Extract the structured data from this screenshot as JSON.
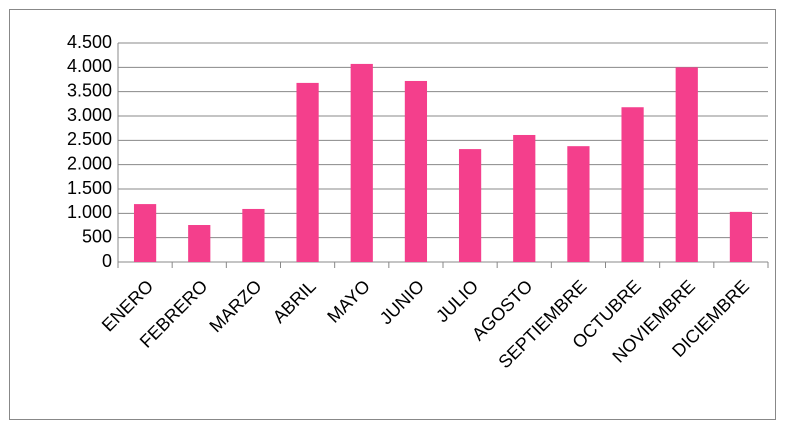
{
  "chart_data": {
    "type": "bar",
    "categories": [
      "ENERO",
      "FEBRERO",
      "MARZO",
      "ABRIL",
      "MAYO",
      "JUNIO",
      "JULIO",
      "AGOSTO",
      "SEPTIEMBRE",
      "OCTUBRE",
      "NOVIEMBRE",
      "DICIEMBRE"
    ],
    "values": [
      1190,
      760,
      1090,
      3680,
      4070,
      3720,
      2320,
      2610,
      2380,
      3180,
      4000,
      1030
    ],
    "color": "#f43f8c",
    "ylim": [
      0,
      4500
    ],
    "yticks": [
      0,
      500,
      {
        "value": 1000,
        "label": "1.000"
      },
      {
        "value": 1500,
        "label": "1.500"
      },
      {
        "value": 2000,
        "label": "2.000"
      },
      {
        "value": 2500,
        "label": "2.500"
      },
      {
        "value": 3000,
        "label": "3.000"
      },
      {
        "value": 3500,
        "label": "3.500"
      },
      {
        "value": 4000,
        "label": "4.000"
      },
      {
        "value": 4500,
        "label": "4.500"
      }
    ],
    "grid": true
  }
}
